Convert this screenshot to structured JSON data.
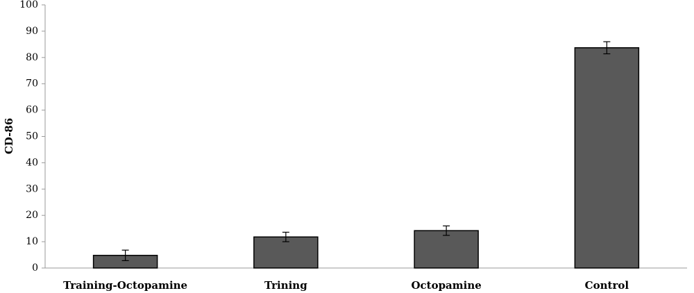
{
  "chart_data": {
    "type": "bar",
    "y_label": "CD-86",
    "categories": [
      "Training-Octopamine",
      "Trining",
      "Octopamine",
      "Control"
    ],
    "values": [
      4.8,
      11.8,
      14.2,
      83.7
    ],
    "errors": [
      2,
      1.8,
      1.8,
      2.3
    ],
    "color": "#595959",
    "ylim": [
      0,
      100
    ],
    "yticks": [
      0,
      10,
      20,
      30,
      40,
      50,
      60,
      70,
      80,
      90,
      100
    ],
    "grid": false
  }
}
